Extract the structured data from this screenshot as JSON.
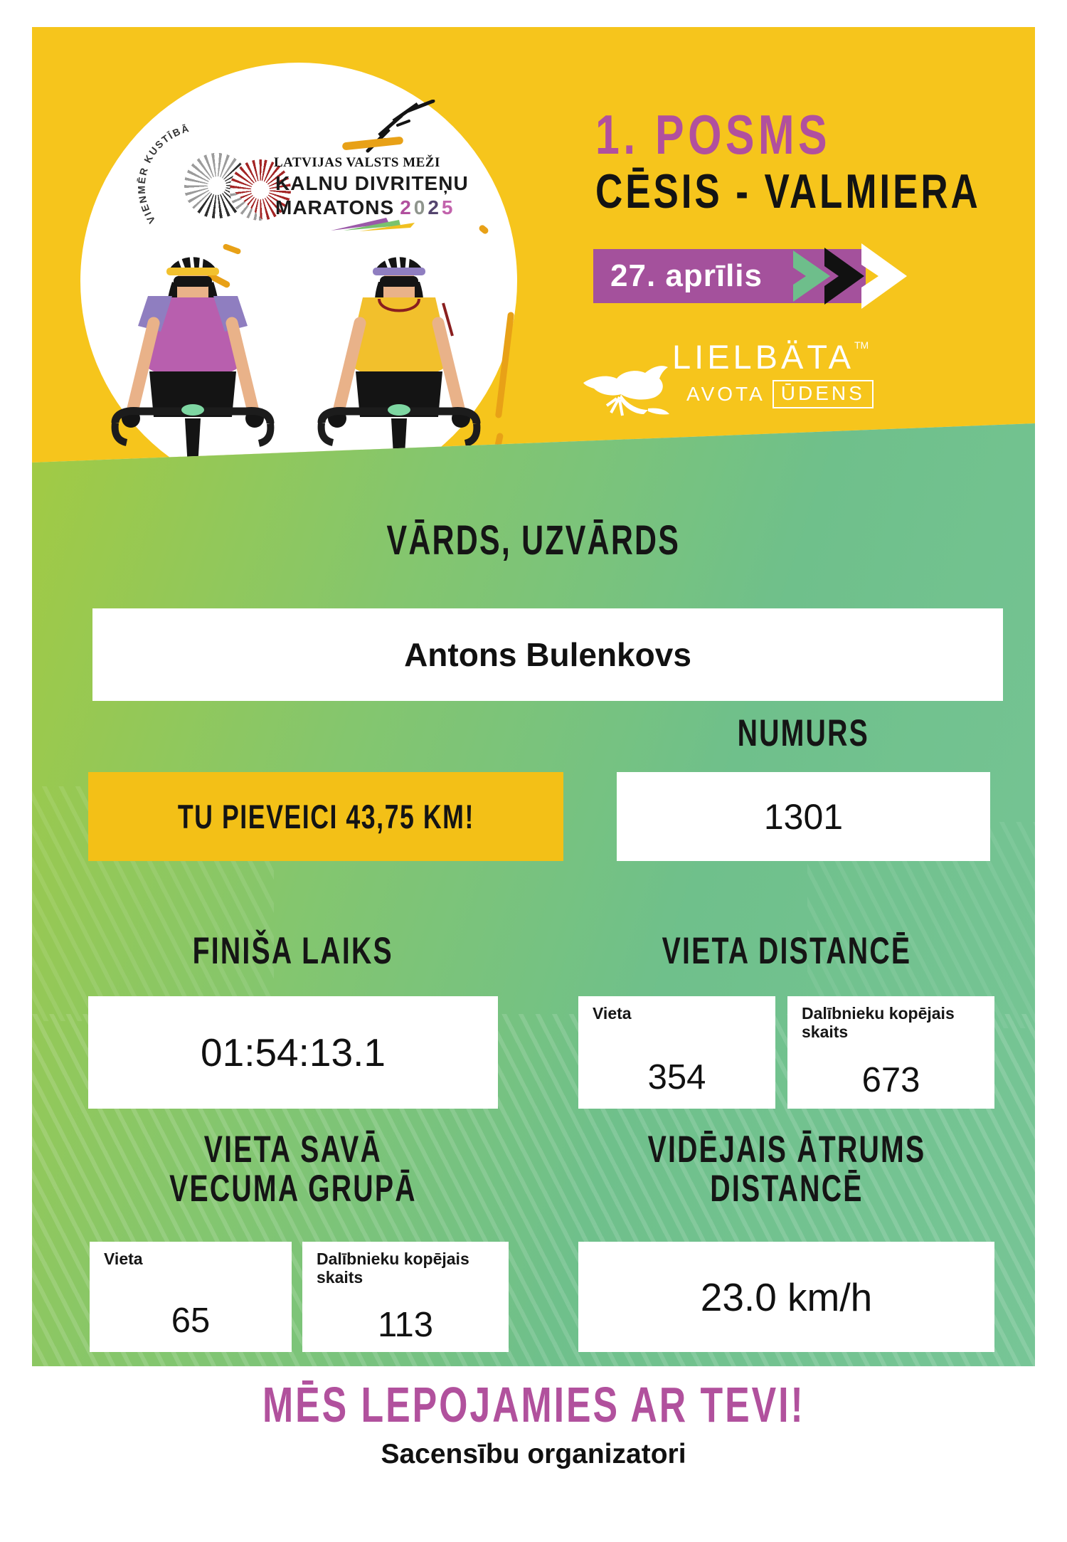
{
  "header": {
    "stage": "1. POSMS",
    "route": "CĒSIS - VALMIERA",
    "date": "27. aprīlis",
    "logo": {
      "motto": "VIENMĒR KUSTĪBĀ",
      "org": "LATVIJAS VALSTS MEŽI",
      "event_line1": "KALNU DIVRITEŅU",
      "event_line2": "MARATONS",
      "year": "2025"
    },
    "sponsor": {
      "name": "LIELBÄTA",
      "tm": "TM",
      "sub1": "AVOTA",
      "sub2": "ŪDENS"
    }
  },
  "result": {
    "name_label": "VĀRDS, UZVĀRDS",
    "name": "Antons Bulenkovs",
    "distance_banner": "TU PIEVEICI 43,75 KM!",
    "number_label": "NUMURS",
    "number": "1301",
    "finish_label": "FINIŠA LAIKS",
    "finish_time": "01:54:13.1",
    "place_distance_label": "VIETA DISTANCĒ",
    "place_label": "Vieta",
    "participants_label_1": "Dalībnieku kopējais",
    "participants_label_2": "skaits",
    "place_distance": "354",
    "participants_distance": "673",
    "age_group_label_1": "VIETA SAVĀ",
    "age_group_label_2": "VECUMA GRUPĀ",
    "place_age_group": "65",
    "participants_age_group": "113",
    "avg_speed_label_1": "VIDĒJAIS ĀTRUMS",
    "avg_speed_label_2": "DISTANCĒ",
    "avg_speed": "23.0 km/h"
  },
  "footer": {
    "line1": "MĒS LEPOJAMIES AR TEVI!",
    "line2": "Sacensību organizatori"
  },
  "colors": {
    "yellow": "#f6c51c",
    "banner_yellow": "#f3c017",
    "magenta": "#b1509e",
    "badge_purple": "#a4519c",
    "green_gradient_start": "#a2ca43",
    "green_gradient_end": "#77c596",
    "chevron_green": "#6ebe8b",
    "year_digit_colors": [
      "#b1509e",
      "#8f958d",
      "#54446e",
      "#c263ac"
    ]
  }
}
